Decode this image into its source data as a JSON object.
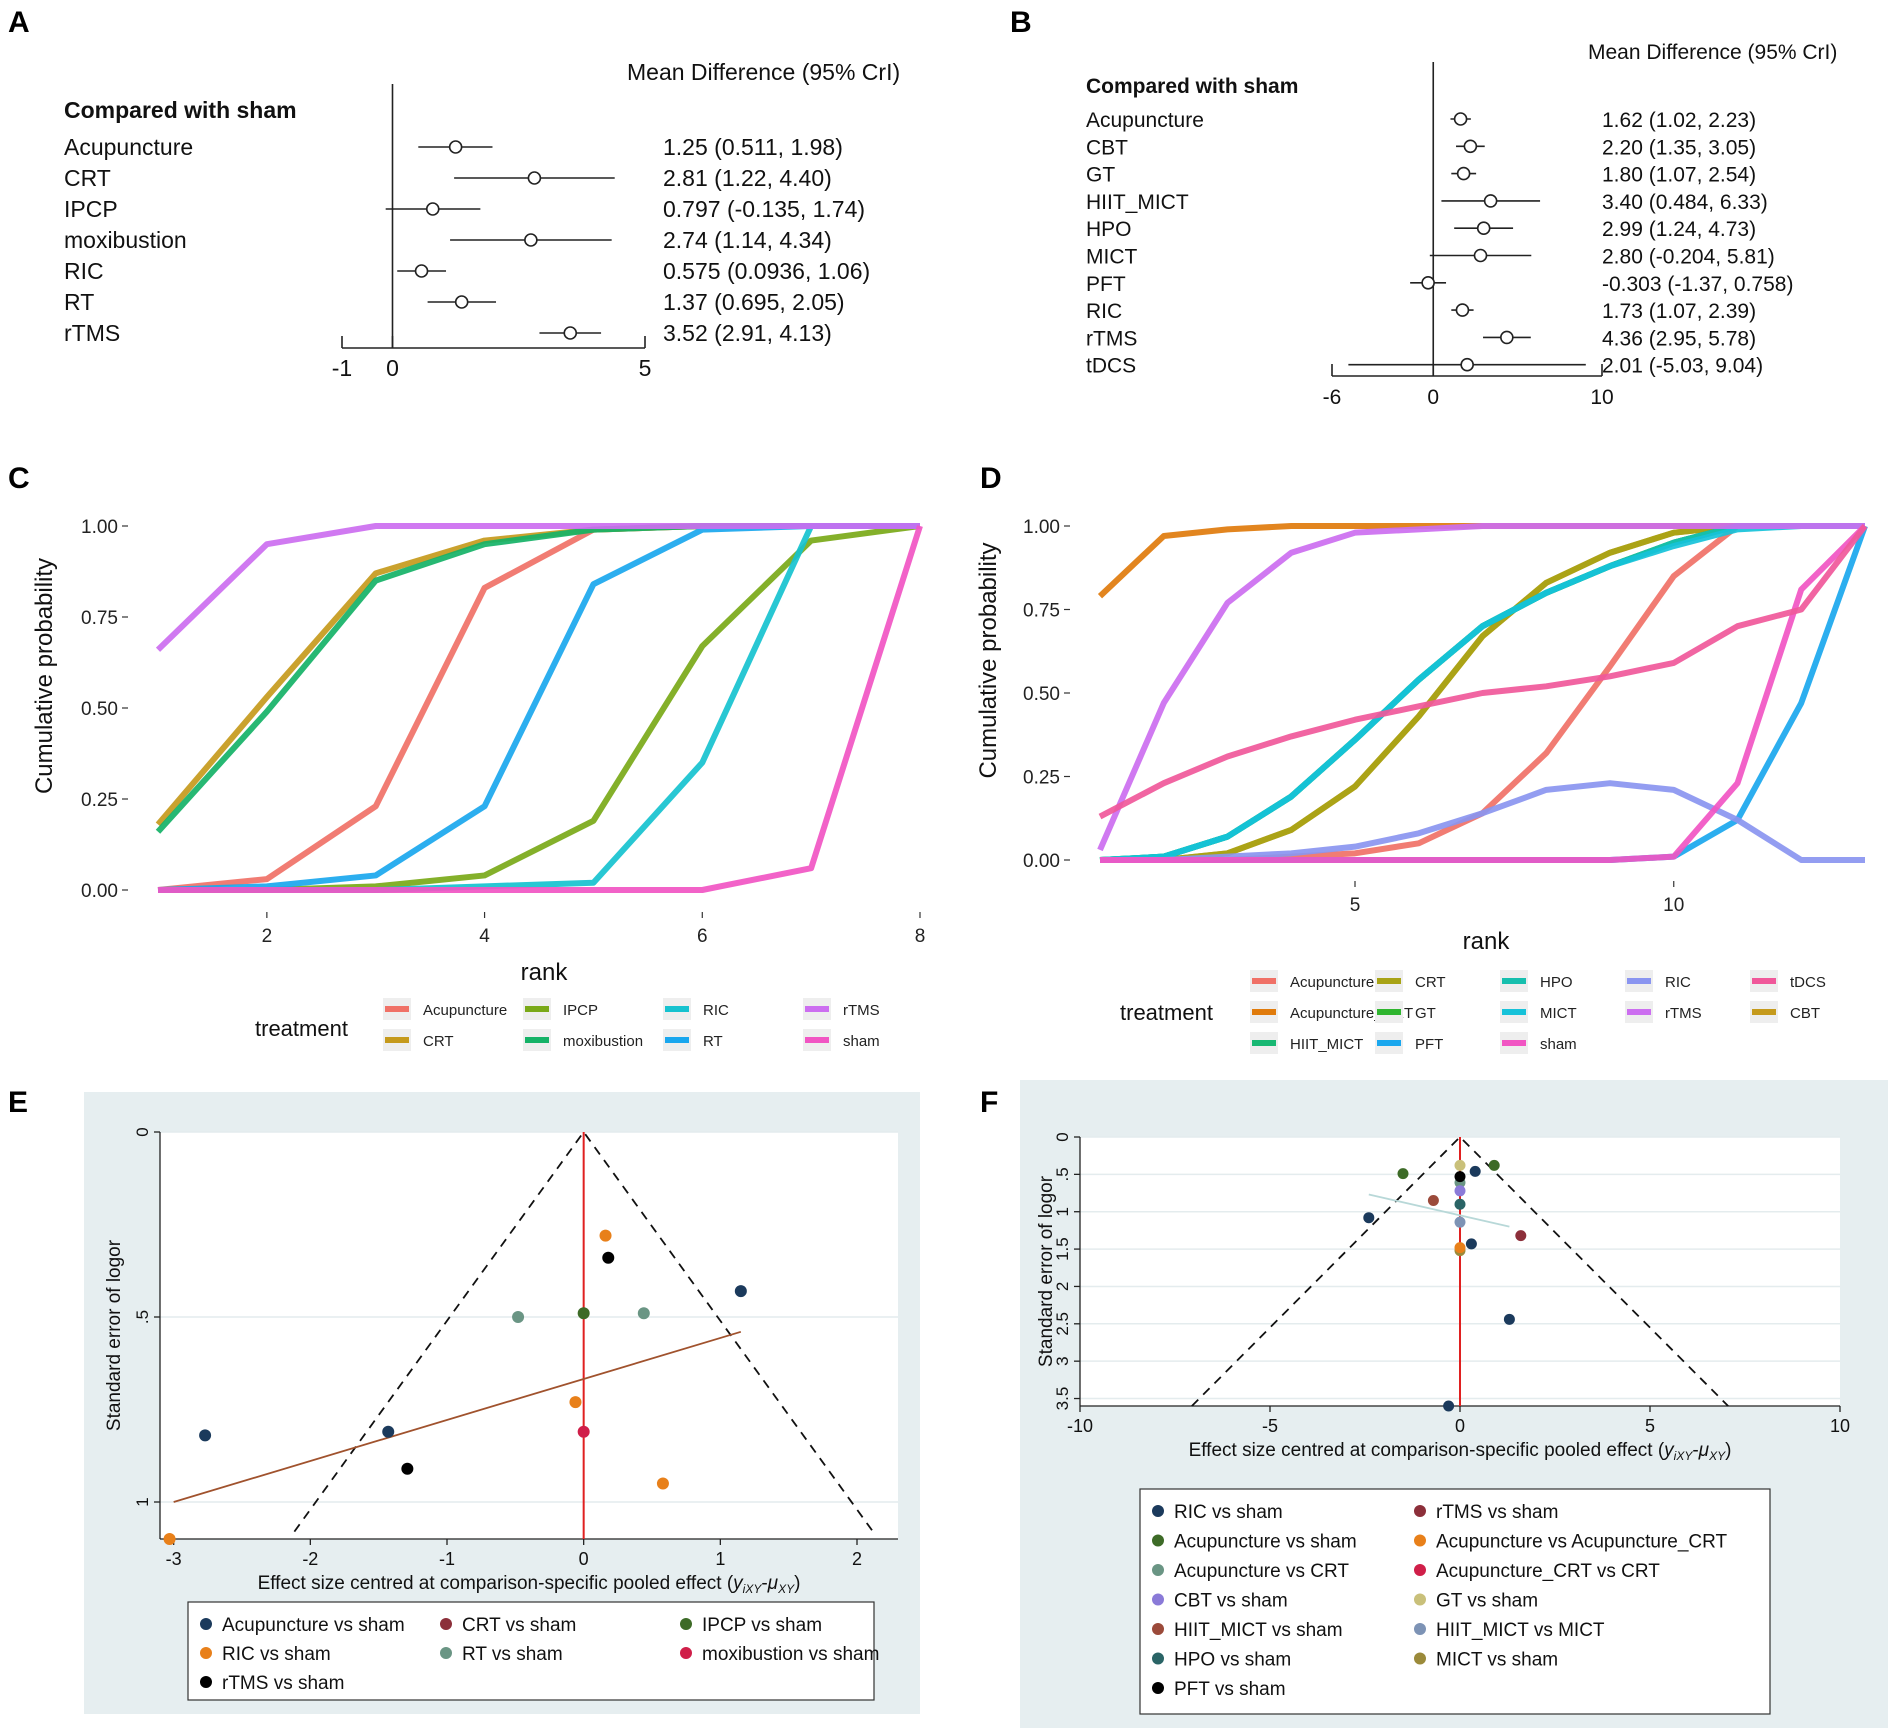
{
  "panel_labels": [
    "A",
    "B",
    "C",
    "D",
    "E",
    "F"
  ],
  "colors": {
    "Acupuncture": "#f07167",
    "Acupuncture_CRT": "#e07b0c",
    "CRT": "#c59a1c",
    "CBT": "#c59a1c",
    "GT": "#2fb52f",
    "HIIT_MICT": "#18b873",
    "HPO": "#17bfae",
    "MICT": "#16c2d9",
    "PFT": "#1aa7ee",
    "RIC": "#8a95f0",
    "rTMS": "#cc6ef0",
    "sham": "#f155c3",
    "tDCS": "#f0589a",
    "IPCP": "#7aa918",
    "moxibustion": "#15b267",
    "RT": "#1aa7ee",
    "RIC_C": "#16c2cf"
  },
  "chart_data": [
    {
      "id": "A",
      "type": "forest",
      "title": "Mean Difference (95% CrI)",
      "group_label": "Compared with sham",
      "xlim": [
        -1,
        5
      ],
      "ticks": [
        -1,
        0,
        5
      ],
      "rows": [
        {
          "label": "Acupuncture",
          "est": 1.25,
          "lo": 0.511,
          "hi": 1.98,
          "text": "1.25 (0.511, 1.98)"
        },
        {
          "label": "CRT",
          "est": 2.81,
          "lo": 1.22,
          "hi": 4.4,
          "text": "2.81 (1.22, 4.40)"
        },
        {
          "label": "IPCP",
          "est": 0.797,
          "lo": -0.135,
          "hi": 1.74,
          "text": "0.797 (-0.135, 1.74)"
        },
        {
          "label": "moxibustion",
          "est": 2.74,
          "lo": 1.14,
          "hi": 4.34,
          "text": "2.74 (1.14, 4.34)"
        },
        {
          "label": "RIC",
          "est": 0.575,
          "lo": 0.0936,
          "hi": 1.06,
          "text": "0.575 (0.0936, 1.06)"
        },
        {
          "label": "RT",
          "est": 1.37,
          "lo": 0.695,
          "hi": 2.05,
          "text": "1.37 (0.695, 2.05)"
        },
        {
          "label": "rTMS",
          "est": 3.52,
          "lo": 2.91,
          "hi": 4.13,
          "text": "3.52 (2.91, 4.13)"
        }
      ]
    },
    {
      "id": "B",
      "type": "forest",
      "title": "Mean Difference (95% CrI)",
      "group_label": "Compared with sham",
      "xlim": [
        -6,
        10
      ],
      "ticks": [
        -6,
        0,
        10
      ],
      "rows": [
        {
          "label": "Acupuncture",
          "est": 1.62,
          "lo": 1.02,
          "hi": 2.23,
          "text": "1.62 (1.02, 2.23)"
        },
        {
          "label": "CBT",
          "est": 2.2,
          "lo": 1.35,
          "hi": 3.05,
          "text": "2.20 (1.35, 3.05)"
        },
        {
          "label": "GT",
          "est": 1.8,
          "lo": 1.07,
          "hi": 2.54,
          "text": "1.80 (1.07, 2.54)"
        },
        {
          "label": "HIIT_MICT",
          "est": 3.4,
          "lo": 0.484,
          "hi": 6.33,
          "text": "3.40 (0.484, 6.33)"
        },
        {
          "label": "HPO",
          "est": 2.99,
          "lo": 1.24,
          "hi": 4.73,
          "text": "2.99 (1.24, 4.73)"
        },
        {
          "label": "MICT",
          "est": 2.8,
          "lo": -0.204,
          "hi": 5.81,
          "text": "2.80 (-0.204, 5.81)"
        },
        {
          "label": "PFT",
          "est": -0.303,
          "lo": -1.37,
          "hi": 0.758,
          "text": "-0.303 (-1.37, 0.758)"
        },
        {
          "label": "RIC",
          "est": 1.73,
          "lo": 1.07,
          "hi": 2.39,
          "text": "1.73 (1.07, 2.39)"
        },
        {
          "label": "rTMS",
          "est": 4.36,
          "lo": 2.95,
          "hi": 5.78,
          "text": "4.36 (2.95, 5.78)"
        },
        {
          "label": "tDCS",
          "est": 2.01,
          "lo": -5.03,
          "hi": 9.04,
          "text": "2.01 (-5.03, 9.04)"
        }
      ]
    },
    {
      "id": "C",
      "type": "line",
      "xlabel": "rank",
      "ylabel": "Cumulative probability",
      "xlim": [
        1,
        8
      ],
      "xticks": [
        2,
        4,
        6,
        8
      ],
      "ylim": [
        0,
        1
      ],
      "yticks": [
        "0.00",
        "0.25",
        "0.50",
        "0.75",
        "1.00"
      ],
      "legend_title": "treatment",
      "legend_cols": 5,
      "series": [
        {
          "name": "Acupuncture",
          "color": "#f07167",
          "values": [
            0,
            0.03,
            0.23,
            0.83,
            0.99,
            1.0,
            1.0,
            1.0
          ]
        },
        {
          "name": "CRT",
          "color": "#c59a1c",
          "values": [
            0.18,
            0.53,
            0.87,
            0.96,
            0.99,
            1.0,
            1.0,
            1.0
          ]
        },
        {
          "name": "IPCP",
          "color": "#7aa918",
          "values": [
            0,
            0,
            0.01,
            0.04,
            0.19,
            0.67,
            0.96,
            1.0
          ]
        },
        {
          "name": "moxibustion",
          "color": "#15b267",
          "values": [
            0.16,
            0.49,
            0.85,
            0.95,
            0.99,
            1.0,
            1.0,
            1.0
          ]
        },
        {
          "name": "RIC",
          "color": "#16c2cf",
          "values": [
            0,
            0,
            0,
            0.01,
            0.02,
            0.35,
            1.0,
            1.0
          ]
        },
        {
          "name": "RT",
          "color": "#1aa7ee",
          "values": [
            0,
            0.01,
            0.04,
            0.23,
            0.84,
            0.99,
            1.0,
            1.0
          ]
        },
        {
          "name": "rTMS",
          "color": "#cc6ef0",
          "values": [
            0.66,
            0.95,
            1.0,
            1.0,
            1.0,
            1.0,
            1.0,
            1.0
          ]
        },
        {
          "name": "sham",
          "color": "#f155c3",
          "values": [
            0,
            0,
            0,
            0,
            0,
            0,
            0.06,
            1.0
          ]
        }
      ],
      "legend": [
        "Acupuncture",
        "IPCP",
        "RIC",
        "rTMS",
        "CRT",
        "moxibustion",
        "RT",
        "sham"
      ]
    },
    {
      "id": "D",
      "type": "line",
      "xlabel": "rank",
      "ylabel": "Cumulative probability",
      "xlim": [
        1,
        13
      ],
      "xticks": [
        5,
        10
      ],
      "ylim": [
        0,
        1
      ],
      "yticks": [
        "0.00",
        "0.25",
        "0.50",
        "0.75",
        "1.00"
      ],
      "legend_title": "treatment",
      "series": [
        {
          "name": "Acupuncture",
          "color": "#f07167",
          "values": [
            0,
            0,
            0,
            0.01,
            0.02,
            0.05,
            0.14,
            0.32,
            0.58,
            0.85,
            1.0,
            1.0,
            1.0
          ]
        },
        {
          "name": "Acupuncture_CRT",
          "color": "#e07b0c",
          "values": [
            0.79,
            0.97,
            0.99,
            1.0,
            1.0,
            1.0,
            1.0,
            1.0,
            1.0,
            1.0,
            1.0,
            1.0,
            1.0
          ]
        },
        {
          "name": "CBT",
          "color": "#c59a1c",
          "values": [
            0,
            0,
            0.02,
            0.09,
            0.22,
            0.43,
            0.67,
            0.83,
            0.92,
            0.98,
            1.0,
            1.0,
            1.0
          ]
        },
        {
          "name": "CRT",
          "color": "#a8a315",
          "values": [
            0,
            0,
            0.02,
            0.09,
            0.22,
            0.43,
            0.67,
            0.83,
            0.92,
            0.98,
            1.0,
            1.0,
            1.0
          ]
        },
        {
          "name": "GT",
          "color": "#2fb52f",
          "values": [
            0,
            0.01,
            0.07,
            0.19,
            0.36,
            0.54,
            0.7,
            0.8,
            0.88,
            0.95,
            1.0,
            1.0,
            1.0
          ]
        },
        {
          "name": "HIIT_MICT",
          "color": "#18b873",
          "values": [
            0,
            0.01,
            0.07,
            0.19,
            0.36,
            0.54,
            0.7,
            0.8,
            0.88,
            0.95,
            1.0,
            1.0,
            1.0
          ]
        },
        {
          "name": "HPO",
          "color": "#17bfae",
          "values": [
            0,
            0.01,
            0.07,
            0.19,
            0.36,
            0.54,
            0.7,
            0.8,
            0.88,
            0.95,
            1.0,
            1.0,
            1.0
          ]
        },
        {
          "name": "MICT",
          "color": "#16c2d9",
          "values": [
            0,
            0.01,
            0.07,
            0.19,
            0.36,
            0.54,
            0.7,
            0.8,
            0.88,
            0.94,
            0.99,
            1.0,
            1.0
          ]
        },
        {
          "name": "PFT",
          "color": "#1aa7ee",
          "values": [
            0,
            0,
            0,
            0,
            0,
            0,
            0,
            0,
            0,
            0.01,
            0.12,
            0.47,
            1.0
          ]
        },
        {
          "name": "RIC",
          "color": "#8a95f0",
          "values": [
            0,
            0,
            0.01,
            0.02,
            0.04,
            0.08,
            0.14,
            0.21,
            0.23,
            0.21,
            0.12,
            0,
            0
          ]
        },
        {
          "name": "rTMS",
          "color": "#cc6ef0",
          "values": [
            0.03,
            0.47,
            0.77,
            0.92,
            0.98,
            0.99,
            1.0,
            1.0,
            1.0,
            1.0,
            1.0,
            1.0,
            1.0
          ]
        },
        {
          "name": "sham",
          "color": "#f155c3",
          "values": [
            0,
            0,
            0,
            0,
            0,
            0,
            0,
            0,
            0,
            0.01,
            0.23,
            0.81,
            1.0
          ]
        },
        {
          "name": "tDCS",
          "color": "#f0589a",
          "values": [
            0.13,
            0.23,
            0.31,
            0.37,
            0.42,
            0.46,
            0.5,
            0.52,
            0.55,
            0.59,
            0.7,
            0.75,
            1.0
          ]
        }
      ],
      "legend": [
        "Acupuncture",
        "CRT",
        "HPO",
        "RIC",
        "tDCS",
        "Acupuncture_CRT",
        "GT",
        "MICT",
        "rTMS",
        "CBT",
        "HIIT_MICT",
        "PFT",
        "sham"
      ]
    },
    {
      "id": "E",
      "type": "scatter",
      "xlabel": "Effect size centred at comparison-specific pooled effect (",
      "xlabel_math": "y",
      "xlabel_sub": "iXY",
      "xlabel_mid": "-",
      "xlabel_math2": "μ",
      "xlabel_sub2": "XY",
      "xlabel_end": ")",
      "ylabel": "Standard error of logor",
      "xlim": [
        -3.1,
        2.3
      ],
      "xticks": [
        "-3",
        "-2",
        "-1",
        "0",
        "1",
        "2"
      ],
      "ylim": [
        0,
        1.1
      ],
      "yticks": [
        "0",
        ".5",
        "1"
      ],
      "funnel_se_max": 1.08,
      "regression": {
        "x1": -3.0,
        "y1": 1.0,
        "x2": 1.15,
        "y2": 0.54
      },
      "points": [
        {
          "group": "Acupuncture vs sham",
          "color": "#1b3a5c",
          "x": 1.15,
          "y": 0.43
        },
        {
          "group": "Acupuncture vs sham",
          "color": "#1b3a5c",
          "x": -2.77,
          "y": 0.82
        },
        {
          "group": "Acupuncture vs sham",
          "color": "#1b3a5c",
          "x": -1.43,
          "y": 0.81
        },
        {
          "group": "RIC vs sham",
          "color": "#e8801a",
          "x": 0.16,
          "y": 0.28
        },
        {
          "group": "RIC vs sham",
          "color": "#e8801a",
          "x": -0.06,
          "y": 0.73
        },
        {
          "group": "RIC vs sham",
          "color": "#e8801a",
          "x": 0.58,
          "y": 0.95
        },
        {
          "group": "RIC vs sham",
          "color": "#e8801a",
          "x": -3.03,
          "y": 1.1
        },
        {
          "group": "rTMS vs sham",
          "color": "#000000",
          "x": 0.18,
          "y": 0.34
        },
        {
          "group": "rTMS vs sham",
          "color": "#000000",
          "x": -1.29,
          "y": 0.91
        },
        {
          "group": "IPCP vs sham",
          "color": "#3d6b27",
          "x": 0.0,
          "y": 0.49
        },
        {
          "group": "RT vs sham",
          "color": "#6a9584",
          "x": -0.48,
          "y": 0.5
        },
        {
          "group": "RT vs sham",
          "color": "#6a9584",
          "x": 0.44,
          "y": 0.49
        },
        {
          "group": "moxibustion vs sham",
          "color": "#d01f49",
          "x": 0.0,
          "y": 0.81
        }
      ],
      "legend": [
        {
          "label": "Acupuncture vs sham",
          "color": "#1b3a5c"
        },
        {
          "label": "CRT vs sham",
          "color": "#8c2f3a"
        },
        {
          "label": "IPCP vs sham",
          "color": "#3d6b27"
        },
        {
          "label": "RIC vs sham",
          "color": "#e8801a"
        },
        {
          "label": "RT vs sham",
          "color": "#6a9584"
        },
        {
          "label": "moxibustion vs sham",
          "color": "#d01f49"
        },
        {
          "label": "rTMS vs sham",
          "color": "#000000"
        }
      ]
    },
    {
      "id": "F",
      "type": "scatter",
      "xlabel": "Effect size centred at comparison-specific pooled effect (",
      "xlabel_math": "y",
      "xlabel_sub": "iXY",
      "xlabel_mid": "-",
      "xlabel_math2": "μ",
      "xlabel_sub2": "XY",
      "xlabel_end": ")",
      "ylabel": "Standard error of logor",
      "xlim": [
        -10,
        10
      ],
      "xticks": [
        "-10",
        "-5",
        "0",
        "5",
        "10"
      ],
      "ylim": [
        0,
        3.6
      ],
      "yticks": [
        "0",
        ".5",
        "1",
        "1.5",
        "2",
        "2.5",
        "3",
        "3.5"
      ],
      "funnel_se_max": 3.6,
      "regression": {
        "x1": -2.4,
        "y1": 0.77,
        "x2": 1.3,
        "y2": 1.2
      },
      "points": [
        {
          "group": "RIC vs sham",
          "color": "#1b3a5c",
          "x": 0.4,
          "y": 0.46
        },
        {
          "group": "RIC vs sham",
          "color": "#1b3a5c",
          "x": -2.4,
          "y": 1.08
        },
        {
          "group": "RIC vs sham",
          "color": "#1b3a5c",
          "x": 0.3,
          "y": 1.43
        },
        {
          "group": "RIC vs sham",
          "color": "#1b3a5c",
          "x": 1.3,
          "y": 2.44
        },
        {
          "group": "RIC vs sham",
          "color": "#1b3a5c",
          "x": -0.3,
          "y": 3.6
        },
        {
          "group": "Acupuncture vs sham",
          "color": "#3d6b27",
          "x": -1.5,
          "y": 0.49
        },
        {
          "group": "Acupuncture vs sham",
          "color": "#3d6b27",
          "x": 0.9,
          "y": 0.38
        },
        {
          "group": "rTMS vs sham",
          "color": "#8c2f3a",
          "x": 1.6,
          "y": 1.32
        },
        {
          "group": "HIIT_MICT vs sham",
          "color": "#9b4a3a",
          "x": -0.7,
          "y": 0.85
        },
        {
          "group": "Acupuncture vs CRT",
          "color": "#6a9584",
          "x": 0.0,
          "y": 0.61
        },
        {
          "group": "GT vs sham",
          "color": "#c9c07a",
          "x": 0.0,
          "y": 0.38
        },
        {
          "group": "HIIT_MICT vs MICT",
          "color": "#7d93b5",
          "x": 0.0,
          "y": 1.14
        },
        {
          "group": "CBT vs sham",
          "color": "#8a7ad8",
          "x": 0.0,
          "y": 0.72
        },
        {
          "group": "HPO vs sham",
          "color": "#2a6466",
          "x": 0.0,
          "y": 0.9
        },
        {
          "group": "MICT vs sham",
          "color": "#9b8a3a",
          "x": 0.0,
          "y": 1.52
        },
        {
          "group": "Acupuncture vs Acupuncture_CRT",
          "color": "#e8801a",
          "x": 0.0,
          "y": 1.48
        },
        {
          "group": "PFT vs sham",
          "color": "#000000",
          "x": 0.0,
          "y": 0.53
        }
      ],
      "legend": [
        {
          "label": "RIC vs sham",
          "color": "#1b3a5c"
        },
        {
          "label": "rTMS vs sham",
          "color": "#8c2f3a"
        },
        {
          "label": "Acupuncture vs sham",
          "color": "#3d6b27"
        },
        {
          "label": "Acupuncture vs Acupuncture_CRT",
          "color": "#e8801a"
        },
        {
          "label": "Acupuncture vs CRT",
          "color": "#6a9584"
        },
        {
          "label": "Acupuncture_CRT vs CRT",
          "color": "#d01f49"
        },
        {
          "label": "CBT vs sham",
          "color": "#8a7ad8"
        },
        {
          "label": "GT vs sham",
          "color": "#c9c07a"
        },
        {
          "label": "HIIT_MICT vs sham",
          "color": "#9b4a3a"
        },
        {
          "label": "HIIT_MICT vs MICT",
          "color": "#7d93b5"
        },
        {
          "label": "HPO vs sham",
          "color": "#2a6466"
        },
        {
          "label": "MICT vs sham",
          "color": "#9b8a3a"
        },
        {
          "label": "PFT vs sham",
          "color": "#000000"
        }
      ]
    }
  ]
}
